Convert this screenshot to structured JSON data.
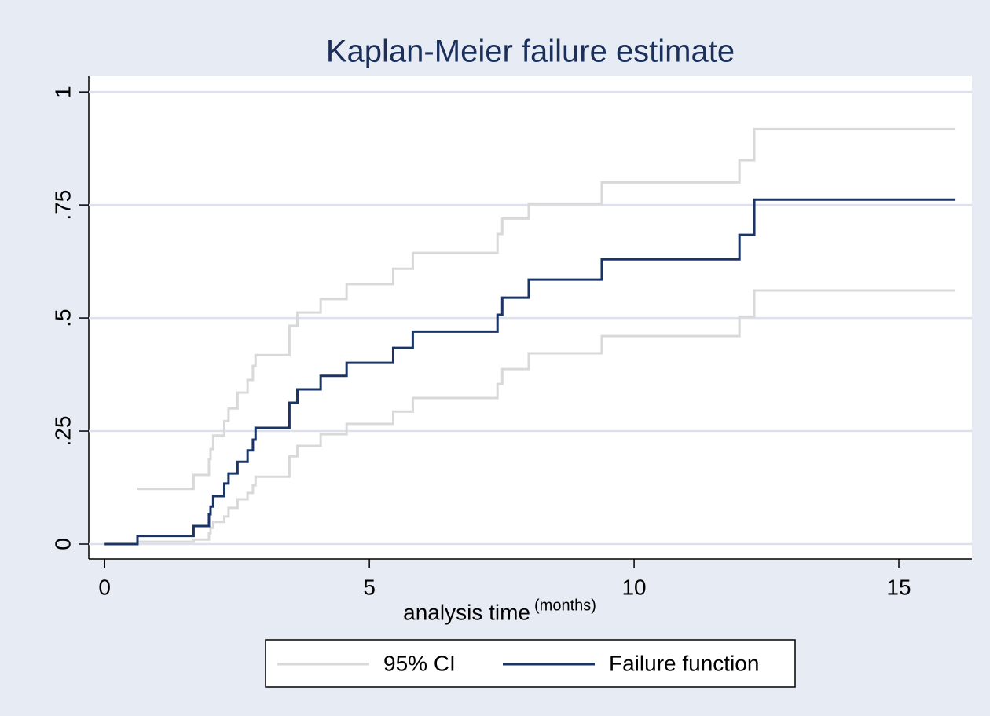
{
  "chart_data": {
    "type": "step",
    "title": "Kaplan-Meier failure estimate",
    "x_label": "analysis time",
    "x_label_unit": "(months)",
    "x": [
      0,
      0.62,
      1.68,
      1.97,
      2.0,
      2.05,
      2.26,
      2.34,
      2.51,
      2.7,
      2.8,
      2.85,
      3.49,
      3.64,
      4.08,
      4.57,
      5.45,
      5.82,
      7.42,
      7.51,
      8.01,
      9.39,
      11.99,
      12.27,
      16.07
    ],
    "series": [
      {
        "name": "95% CI",
        "color": "#d9d9d9",
        "lower": [
          null,
          0.005,
          0.01,
          0.024,
          0.036,
          0.049,
          0.061,
          0.08,
          0.099,
          0.113,
          0.13,
          0.149,
          0.194,
          0.217,
          0.243,
          0.266,
          0.293,
          0.323,
          0.354,
          0.387,
          0.422,
          0.46,
          0.503,
          0.561,
          0.561
        ],
        "upper": [
          null,
          0.122,
          0.153,
          0.188,
          0.21,
          0.24,
          0.272,
          0.3,
          0.335,
          0.363,
          0.394,
          0.418,
          0.483,
          0.512,
          0.542,
          0.575,
          0.609,
          0.644,
          0.686,
          0.72,
          0.753,
          0.8,
          0.849,
          0.918,
          0.918
        ]
      },
      {
        "name": "Failure function",
        "color": "#1a3466",
        "values": [
          0,
          0.018,
          0.04,
          0.066,
          0.083,
          0.106,
          0.134,
          0.156,
          0.182,
          0.207,
          0.231,
          0.257,
          0.3125,
          0.342,
          0.372,
          0.401,
          0.434,
          0.47,
          0.507,
          0.545,
          0.585,
          0.63,
          0.684,
          0.762,
          0.762
        ]
      }
    ],
    "xlim": [
      -0.3,
      16.38
    ],
    "xticks": [
      0,
      5,
      10,
      15
    ],
    "ylim": [
      -0.033,
      1.035
    ],
    "yticks": [
      0,
      {
        "value": 0.25,
        "label": ".25"
      },
      {
        "value": 0.5,
        "label": ".5"
      },
      {
        "value": 0.75,
        "label": ".75"
      },
      1
    ],
    "grid": true
  }
}
